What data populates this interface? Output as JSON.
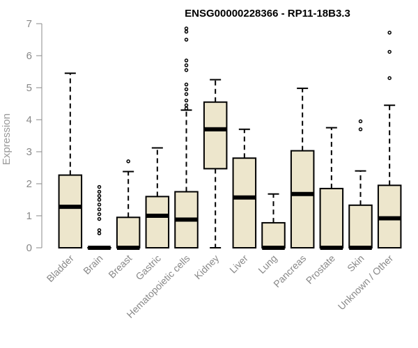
{
  "chart_data": {
    "type": "boxplot",
    "title": "ENSG00000228366 - RP11-18B3.3",
    "xlabel": "",
    "ylabel": "Expression",
    "ylim": [
      0,
      7
    ],
    "yticks": [
      0,
      1,
      2,
      3,
      4,
      5,
      6,
      7
    ],
    "categories": [
      "Bladder",
      "Brain",
      "Breast",
      "Gastric",
      "Hematopoietic cells",
      "Kidney",
      "Liver",
      "Lung",
      "Pancreas",
      "Prostate",
      "Skin",
      "Unknown / Other"
    ],
    "boxes": [
      {
        "name": "Bladder",
        "min": 0,
        "q1": 0,
        "median": 1.28,
        "q3": 2.27,
        "max": 5.45,
        "outliers": []
      },
      {
        "name": "Brain",
        "min": 0,
        "q1": 0,
        "median": 0,
        "q3": 0,
        "max": 0,
        "outliers": [
          0.45,
          0.55,
          0.9,
          1.05,
          1.2,
          1.35,
          1.5,
          1.62,
          1.75,
          1.9
        ]
      },
      {
        "name": "Breast",
        "min": 0,
        "q1": 0,
        "median": 0,
        "q3": 0.95,
        "max": 2.38,
        "outliers": [
          2.7
        ]
      },
      {
        "name": "Gastric",
        "min": 0,
        "q1": 0,
        "median": 1.0,
        "q3": 1.6,
        "max": 3.12,
        "outliers": []
      },
      {
        "name": "Hematopoietic cells",
        "min": 0,
        "q1": 0,
        "median": 0.88,
        "q3": 1.75,
        "max": 4.3,
        "outliers": [
          4.35,
          4.45,
          4.6,
          4.8,
          4.95,
          5.1,
          5.55,
          5.7,
          5.85,
          6.5,
          6.75,
          6.85
        ]
      },
      {
        "name": "Kidney",
        "min": 0,
        "q1": 2.47,
        "median": 3.7,
        "q3": 4.55,
        "max": 5.25,
        "outliers": []
      },
      {
        "name": "Liver",
        "min": 0,
        "q1": 0,
        "median": 1.57,
        "q3": 2.8,
        "max": 3.7,
        "outliers": []
      },
      {
        "name": "Lung",
        "min": 0,
        "q1": 0,
        "median": 0,
        "q3": 0.78,
        "max": 1.68,
        "outliers": []
      },
      {
        "name": "Pancreas",
        "min": 0,
        "q1": 0,
        "median": 1.68,
        "q3": 3.03,
        "max": 4.98,
        "outliers": []
      },
      {
        "name": "Prostate",
        "min": 0,
        "q1": 0,
        "median": 0,
        "q3": 1.85,
        "max": 3.75,
        "outliers": []
      },
      {
        "name": "Skin",
        "min": 0,
        "q1": 0,
        "median": 0,
        "q3": 1.33,
        "max": 2.4,
        "outliers": [
          3.7,
          3.95
        ]
      },
      {
        "name": "Unknown / Other",
        "min": 0,
        "q1": 0,
        "median": 0.92,
        "q3": 1.95,
        "max": 4.45,
        "outliers": [
          5.3,
          6.12,
          6.72
        ]
      }
    ]
  }
}
